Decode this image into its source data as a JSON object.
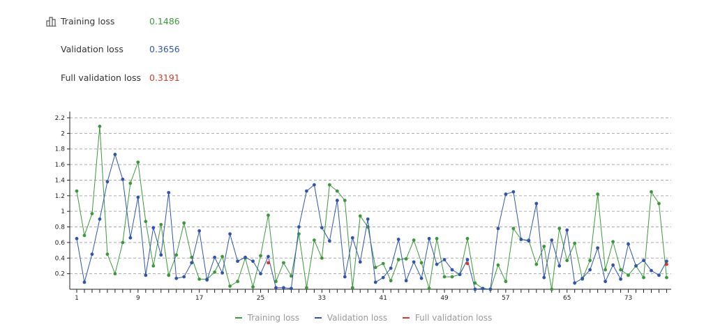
{
  "stats": [
    {
      "label": "Training loss",
      "value": "0.1486",
      "color": "#3a9a3a"
    },
    {
      "label": "Validation loss",
      "value": "0.3656",
      "color": "#2f55b0"
    },
    {
      "label": "Full validation loss",
      "value": "0.3191",
      "color": "#d43a2a"
    }
  ],
  "header_icon": "bar-chart-icon",
  "chart_data": {
    "type": "line",
    "x_range": [
      1,
      78
    ],
    "x_tick_labels": [
      "1",
      "9",
      "17",
      "25",
      "33",
      "41",
      "49",
      "57",
      "65",
      "73"
    ],
    "y_tick_labels": [
      "0.2",
      "0.4",
      "0.6",
      "0.8",
      "1",
      "1.2",
      "1.4",
      "1.6",
      "1.8",
      "2",
      "2.2"
    ],
    "ylim": [
      0,
      2.28
    ],
    "grid": "horizontal dashed",
    "legend_position": "bottom",
    "series": [
      {
        "name": "Training loss",
        "color": "#3a9a3a",
        "values": [
          1.26,
          0.69,
          0.97,
          2.09,
          0.45,
          0.2,
          0.6,
          1.36,
          1.63,
          0.87,
          0.3,
          0.83,
          0.18,
          0.44,
          0.85,
          0.41,
          0.13,
          0.13,
          0.22,
          0.42,
          0.04,
          0.1,
          0.4,
          0.03,
          0.43,
          0.95,
          0.1,
          0.34,
          0.17,
          0.71,
          0.02,
          0.63,
          0.4,
          1.34,
          1.26,
          1.14,
          0.02,
          0.94,
          0.8,
          0.28,
          0.33,
          0.11,
          0.38,
          0.39,
          0.63,
          0.34,
          0.01,
          0.65,
          0.16,
          0.16,
          0.19,
          0.65,
          0.08,
          0.01,
          0.0,
          0.31,
          0.1,
          0.78,
          0.64,
          0.63,
          0.32,
          0.55,
          0.0,
          0.78,
          0.37,
          0.59,
          0.13,
          0.37,
          1.22,
          0.25,
          0.61,
          0.25,
          0.18,
          0.3,
          0.15,
          1.25,
          1.1,
          0.15
        ]
      },
      {
        "name": "Validation loss",
        "color": "#2f55b0",
        "values": [
          0.65,
          0.09,
          0.45,
          0.9,
          1.38,
          1.73,
          1.41,
          0.66,
          1.18,
          0.18,
          0.79,
          0.44,
          1.24,
          0.14,
          0.16,
          0.34,
          0.75,
          0.12,
          0.41,
          0.21,
          0.71,
          0.36,
          0.41,
          0.36,
          0.2,
          0.42,
          0.02,
          0.02,
          0.01,
          0.8,
          1.26,
          1.34,
          0.79,
          0.62,
          1.14,
          0.16,
          0.66,
          0.35,
          0.9,
          0.09,
          0.15,
          0.27,
          0.64,
          0.11,
          0.35,
          0.14,
          0.65,
          0.32,
          0.38,
          0.25,
          0.19,
          0.38,
          0.0,
          0.01,
          0.0,
          0.78,
          1.22,
          1.25,
          0.64,
          0.62,
          1.1,
          0.15,
          0.63,
          0.3,
          0.76,
          0.08,
          0.14,
          0.25,
          0.53,
          0.1,
          0.31,
          0.13,
          0.58,
          0.3,
          0.37,
          0.24,
          0.18,
          0.36
        ]
      },
      {
        "name": "Full validation loss",
        "color": "#d43a2a",
        "points_only": true,
        "x": [
          26,
          52,
          78
        ],
        "values": [
          0.34,
          0.33,
          0.32
        ]
      }
    ]
  }
}
